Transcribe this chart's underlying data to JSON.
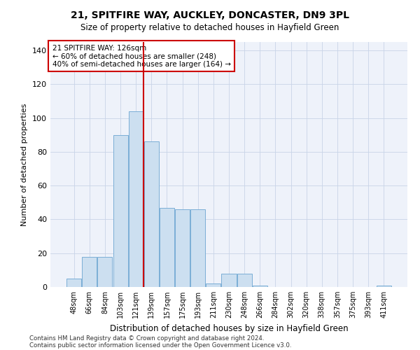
{
  "title": "21, SPITFIRE WAY, AUCKLEY, DONCASTER, DN9 3PL",
  "subtitle": "Size of property relative to detached houses in Hayfield Green",
  "xlabel": "Distribution of detached houses by size in Hayfield Green",
  "ylabel": "Number of detached properties",
  "categories": [
    "48sqm",
    "66sqm",
    "84sqm",
    "103sqm",
    "121sqm",
    "139sqm",
    "157sqm",
    "175sqm",
    "193sqm",
    "211sqm",
    "230sqm",
    "248sqm",
    "266sqm",
    "284sqm",
    "302sqm",
    "320sqm",
    "338sqm",
    "357sqm",
    "375sqm",
    "393sqm",
    "411sqm"
  ],
  "values": [
    5,
    18,
    18,
    90,
    104,
    86,
    47,
    46,
    46,
    2,
    8,
    8,
    1,
    0,
    0,
    0,
    0,
    0,
    0,
    0,
    1
  ],
  "bar_color": "#ccdff0",
  "bar_edge_color": "#7aaed6",
  "highlight_line_color": "#cc0000",
  "ylim": [
    0,
    145
  ],
  "yticks": [
    0,
    20,
    40,
    60,
    80,
    100,
    120,
    140
  ],
  "annotation_line1": "21 SPITFIRE WAY: 126sqm",
  "annotation_line2": "← 60% of detached houses are smaller (248)",
  "annotation_line3": "40% of semi-detached houses are larger (164) →",
  "annotation_box_color": "#ffffff",
  "annotation_box_edge": "#cc0000",
  "background_color": "#eef2fa",
  "footer_line1": "Contains HM Land Registry data © Crown copyright and database right 2024.",
  "footer_line2": "Contains public sector information licensed under the Open Government Licence v3.0."
}
